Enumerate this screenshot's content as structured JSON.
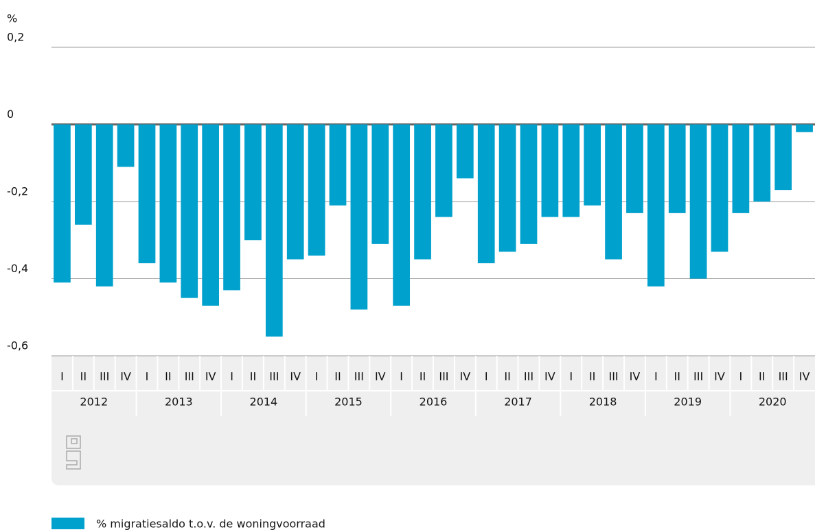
{
  "chart_data": {
    "type": "bar",
    "y_unit": "%",
    "categories": [
      "I",
      "II",
      "III",
      "IV",
      "I",
      "II",
      "III",
      "IV",
      "I",
      "II",
      "III",
      "IV",
      "I",
      "II",
      "III",
      "IV",
      "I",
      "II",
      "III",
      "IV",
      "I",
      "II",
      "III",
      "IV",
      "I",
      "II",
      "III",
      "IV",
      "I",
      "II",
      "III",
      "IV",
      "I",
      "II",
      "III",
      "IV"
    ],
    "year_labels": [
      "2012",
      "2013",
      "2014",
      "2015",
      "2016",
      "2017",
      "2018",
      "2019",
      "2020"
    ],
    "series": [
      {
        "name": "% migratiesaldo t.o.v. de woningvoorraad",
        "color": "#00a1cd",
        "values": [
          -0.41,
          -0.26,
          -0.42,
          -0.11,
          -0.36,
          -0.41,
          -0.45,
          -0.47,
          -0.43,
          -0.3,
          -0.55,
          -0.35,
          -0.34,
          -0.21,
          -0.48,
          -0.31,
          -0.47,
          -0.35,
          -0.24,
          -0.14,
          -0.36,
          -0.33,
          -0.31,
          -0.24,
          -0.24,
          -0.21,
          -0.35,
          -0.23,
          -0.42,
          -0.23,
          -0.4,
          -0.33,
          -0.23,
          -0.2,
          -0.17,
          -0.02
        ]
      }
    ],
    "ylim": [
      -0.6,
      0.2
    ],
    "yticks": [
      {
        "value": -0.6,
        "label": "-0,6"
      },
      {
        "value": -0.4,
        "label": "-0,4"
      },
      {
        "value": -0.2,
        "label": "-0,2"
      },
      0,
      {
        "value": 0.2,
        "label": "0,2"
      }
    ],
    "grid": true
  }
}
